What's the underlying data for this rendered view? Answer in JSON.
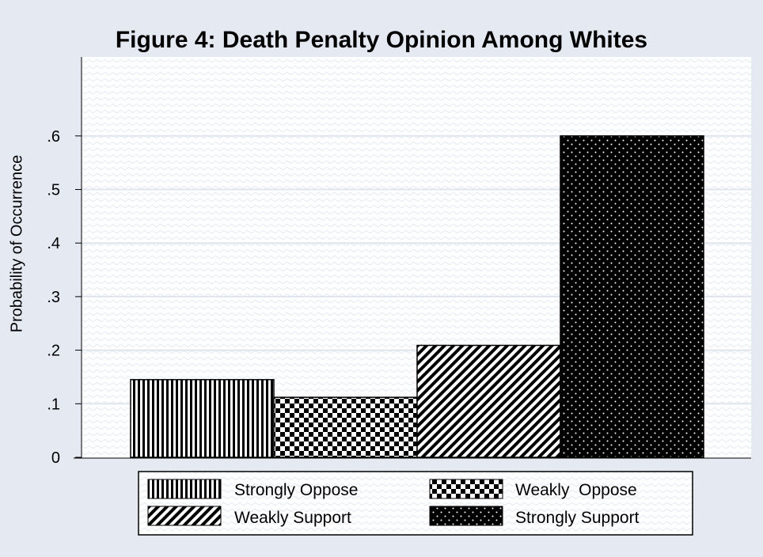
{
  "chart_data": {
    "type": "bar",
    "title": "Figure 4: Death Penalty Opinion Among Whites",
    "ylabel": "Probability of Occurrence",
    "xlabel": "",
    "ylim": [
      0,
      0.7
    ],
    "yticks": [
      {
        "value": 0,
        "label": "0"
      },
      {
        "value": 0.1,
        "label": ".1"
      },
      {
        "value": 0.2,
        "label": ".2"
      },
      {
        "value": 0.3,
        "label": ".3"
      },
      {
        "value": 0.4,
        "label": ".4"
      },
      {
        "value": 0.5,
        "label": ".5"
      },
      {
        "value": 0.6,
        "label": ".6"
      }
    ],
    "categories": [
      "Strongly Oppose",
      "Weakly Oppose",
      "Weakly Support",
      "Strongly Support"
    ],
    "values": [
      0.145,
      0.112,
      0.209,
      0.6
    ],
    "patterns": [
      "vertical-stripes",
      "checkerboard",
      "diagonal-stripes",
      "dotted"
    ],
    "legend": {
      "placement": "bottom",
      "items": [
        {
          "label": "Strongly Oppose",
          "pattern": "vertical-stripes"
        },
        {
          "label": "Weakly  Oppose",
          "pattern": "checkerboard"
        },
        {
          "label": "Weakly Support",
          "pattern": "diagonal-stripes"
        },
        {
          "label": "Strongly Support",
          "pattern": "dotted"
        }
      ]
    },
    "grid": true,
    "colors": {
      "background": "#e4e9f2",
      "plot": "#ffffff",
      "gridline": "#dfe5ee",
      "ink": "#000000"
    }
  }
}
